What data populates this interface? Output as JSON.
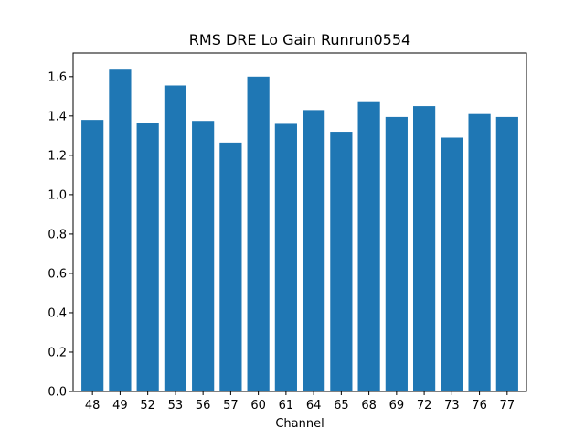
{
  "chart_data": {
    "type": "bar",
    "title": "RMS DRE Lo Gain Runrun0554",
    "xlabel": "Channel",
    "ylabel": "",
    "categories": [
      "48",
      "49",
      "52",
      "53",
      "56",
      "57",
      "60",
      "61",
      "64",
      "65",
      "68",
      "69",
      "72",
      "73",
      "76",
      "77"
    ],
    "values": [
      1.38,
      1.64,
      1.365,
      1.555,
      1.375,
      1.265,
      1.6,
      1.36,
      1.43,
      1.32,
      1.475,
      1.395,
      1.45,
      1.29,
      1.41,
      1.395
    ],
    "ylim": [
      0,
      1.72
    ],
    "yticks": [
      0.0,
      0.2,
      0.4,
      0.6,
      0.8,
      1.0,
      1.2,
      1.4,
      1.6
    ],
    "ytick_labels": [
      "0.0",
      "0.2",
      "0.4",
      "0.6",
      "0.8",
      "1.0",
      "1.2",
      "1.4",
      "1.6"
    ],
    "bar_color": "#1f77b4",
    "grid": false,
    "legend": "none"
  }
}
